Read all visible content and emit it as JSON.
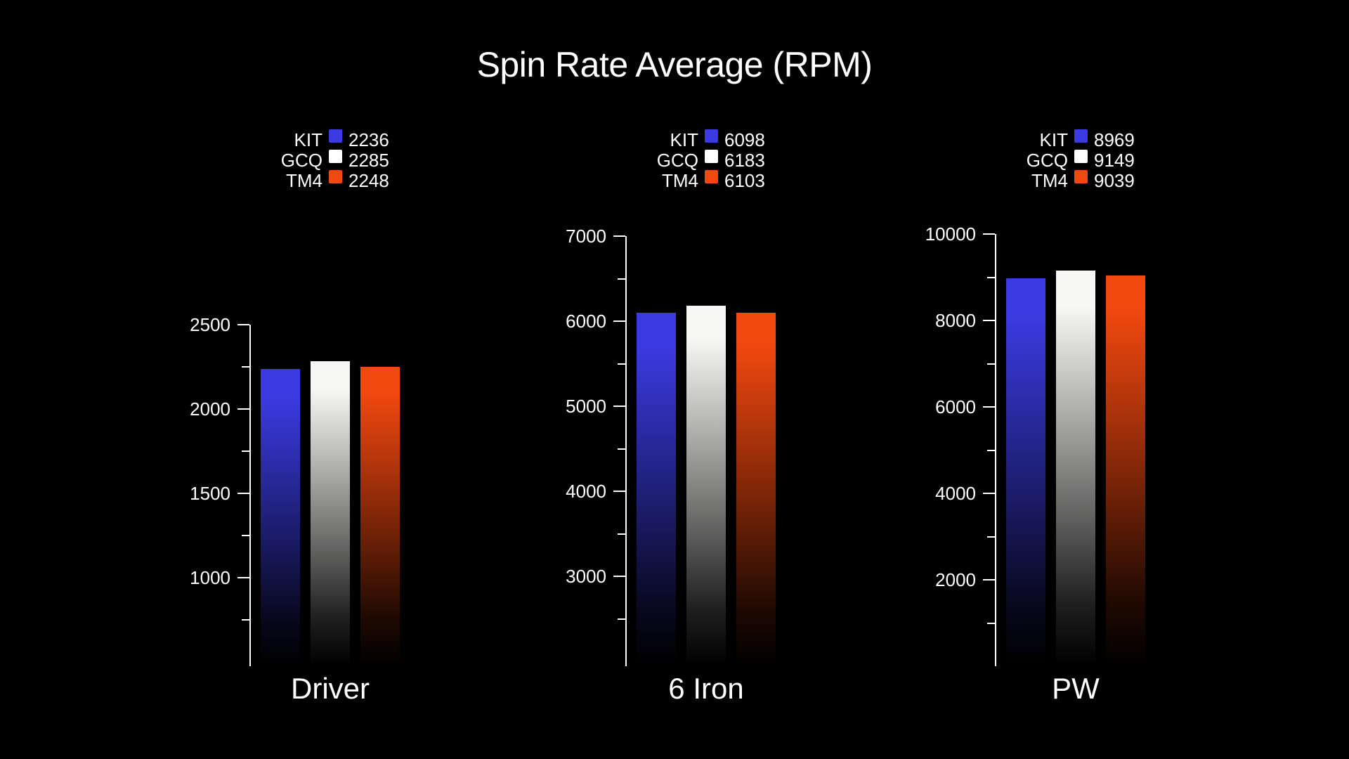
{
  "title": "Spin Rate Average (RPM)",
  "background_color": "#000000",
  "text_color": "#FFFFFF",
  "chart_data": {
    "type": "bar",
    "title": "Spin Rate Average (RPM)",
    "categories": [
      "Driver",
      "6 Iron",
      "PW"
    ],
    "series": [
      {
        "name": "KIT",
        "color": "#3B3BE3",
        "values": [
          2236,
          6098,
          8969
        ]
      },
      {
        "name": "GCQ",
        "color": "#F7F7F5",
        "values": [
          2285,
          6183,
          9149
        ]
      },
      {
        "name": "TM4",
        "color": "#F1480F",
        "values": [
          2248,
          6103,
          9039
        ]
      }
    ],
    "panels": [
      {
        "category": "Driver",
        "ylim": [
          480,
          2500
        ],
        "major_ticks": [
          2500,
          2000,
          1500,
          1000
        ],
        "minor_ticks": [
          2250,
          1750,
          1250,
          750
        ]
      },
      {
        "category": "6 Iron",
        "ylim": [
          1950,
          7000
        ],
        "major_ticks": [
          7000,
          6000,
          5000,
          4000,
          3000
        ],
        "minor_ticks": [
          6500,
          5500,
          4500,
          3500,
          2500
        ]
      },
      {
        "category": "PW",
        "ylim": [
          0,
          10000
        ],
        "major_ticks": [
          10000,
          8000,
          6000,
          4000,
          2000
        ],
        "minor_ticks": [
          9000,
          7000,
          5000,
          3000,
          1000
        ]
      }
    ],
    "legend_position": "top-per-panel",
    "legend_format": "name swatch value",
    "grid": false,
    "bar_style": "vertical gradient fading to black at base"
  }
}
